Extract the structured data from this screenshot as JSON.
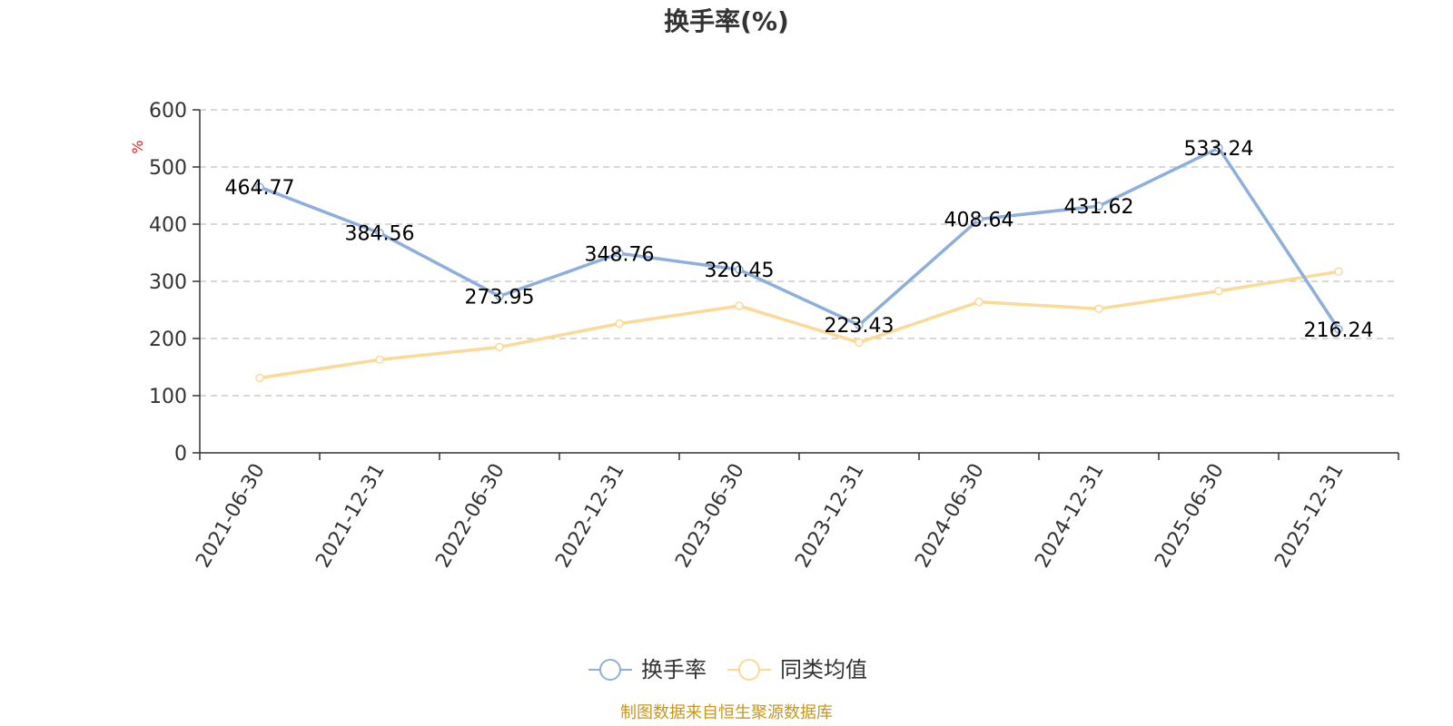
{
  "chart_data": {
    "type": "line",
    "title": "换手率(%)",
    "ylabel": "%",
    "xlabel": "",
    "ylim": [
      0,
      600
    ],
    "yticks": [
      0,
      100,
      200,
      300,
      400,
      500,
      600
    ],
    "grid": true,
    "categories": [
      "2021-06-30",
      "2021-12-31",
      "2022-06-30",
      "2022-12-31",
      "2023-06-30",
      "2023-12-31",
      "2024-06-30",
      "2024-12-31",
      "2025-06-30",
      "2025-12-31"
    ],
    "series": [
      {
        "name": "换手率",
        "color": "#8eaedb",
        "values": [
          464.77,
          384.56,
          273.95,
          348.76,
          320.45,
          223.43,
          408.64,
          431.62,
          533.24,
          216.24
        ],
        "labels": [
          "464.77",
          "384.56",
          "273.95",
          "348.76",
          "320.45",
          "223.43",
          "408.64",
          "431.62",
          "533.24",
          "216.24"
        ]
      },
      {
        "name": "同类均值",
        "color": "#fcd997",
        "values": [
          131,
          163,
          185,
          226,
          257,
          193,
          264,
          252,
          283,
          317
        ]
      }
    ],
    "legend_position": "bottom-center"
  },
  "colors": {
    "axis": "#333333",
    "grid": "#cccccc",
    "unit": "#e02020",
    "source": "#c8961e"
  },
  "source_text": "制图数据来自恒生聚源数据库"
}
